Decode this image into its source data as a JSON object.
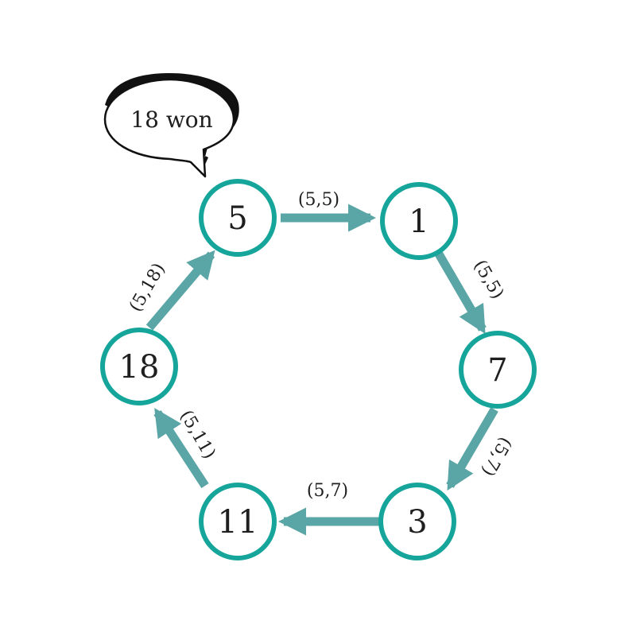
{
  "diagram": {
    "colors": {
      "node_stroke": "#16a59a",
      "edge": "#5aa5a5",
      "text": "#1f1f1f",
      "bubble_shadow": "#111111"
    },
    "nodes": [
      {
        "id": "n5",
        "label": "5"
      },
      {
        "id": "n1",
        "label": "1"
      },
      {
        "id": "n7",
        "label": "7"
      },
      {
        "id": "n3",
        "label": "3"
      },
      {
        "id": "n11",
        "label": "11"
      },
      {
        "id": "n18",
        "label": "18"
      }
    ],
    "edges": [
      {
        "from": "n5",
        "to": "n1",
        "label": "(5,5)"
      },
      {
        "from": "n1",
        "to": "n7",
        "label": "(5,5)"
      },
      {
        "from": "n7",
        "to": "n3",
        "label": "(5,7)"
      },
      {
        "from": "n3",
        "to": "n11",
        "label": "(5,7)"
      },
      {
        "from": "n11",
        "to": "n18",
        "label": "(5,11)"
      },
      {
        "from": "n18",
        "to": "n5",
        "label": "(5,18)"
      }
    ],
    "speech_bubble": {
      "text": "18 won",
      "attached_to": "n5"
    }
  }
}
